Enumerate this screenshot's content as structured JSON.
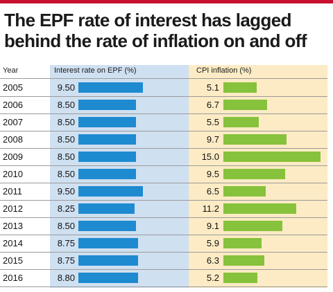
{
  "title": "The EPF rate of interest has lagged behind the rate of inflation on and off",
  "colors": {
    "accent_bar": "#c8102e",
    "epf_bar": "#1e8ad0",
    "cpi_bar": "#86c23b",
    "epf_column_bg": "#cfe0f1",
    "cpi_column_bg": "#fcebc4"
  },
  "chart_data": {
    "type": "bar",
    "orientation": "horizontal",
    "title": "The EPF rate of interest has lagged behind the rate of inflation on and off",
    "column_headers": {
      "year": "Year",
      "epf": "Interest rate on EPF (%)",
      "cpi": "CPI inflation (%)"
    },
    "categories": [
      "2005",
      "2006",
      "2007",
      "2008",
      "2009",
      "2010",
      "2011",
      "2012",
      "2013",
      "2014",
      "2015",
      "2016"
    ],
    "series": [
      {
        "name": "Interest rate on EPF (%)",
        "values": [
          9.5,
          8.5,
          8.5,
          8.5,
          8.5,
          8.5,
          9.5,
          8.25,
          8.5,
          8.75,
          8.75,
          8.8
        ],
        "labels": [
          "9.50",
          "8.50",
          "8.50",
          "8.50",
          "8.50",
          "8.50",
          "9.50",
          "8.25",
          "8.50",
          "8.75",
          "8.75",
          "8.80"
        ]
      },
      {
        "name": "CPI inflation (%)",
        "values": [
          5.1,
          6.7,
          5.5,
          9.7,
          15.0,
          9.5,
          6.5,
          11.2,
          9.1,
          5.9,
          6.3,
          5.2
        ],
        "labels": [
          "5.1",
          "6.7",
          "5.5",
          "9.7",
          "15.0",
          "9.5",
          "6.5",
          "11.2",
          "9.1",
          "5.9",
          "6.3",
          "5.2"
        ]
      }
    ]
  }
}
